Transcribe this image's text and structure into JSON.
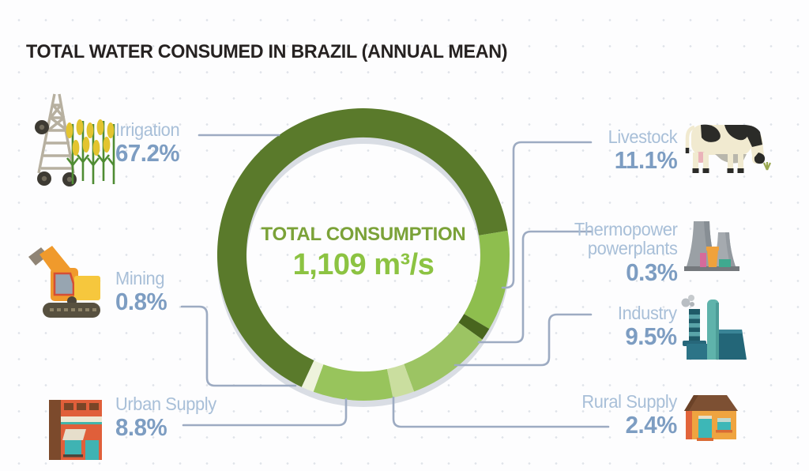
{
  "title": "TOTAL WATER CONSUMED IN BRAZIL (ANNUAL MEAN)",
  "donut_center": {
    "label": "TOTAL CONSUMPTION",
    "value": "1,109 m³/s"
  },
  "items": [
    {
      "name": "Irrigation",
      "pct": "67.2%"
    },
    {
      "name": "Mining",
      "pct": "0.8%"
    },
    {
      "name": "Urban Supply",
      "pct": "8.8%"
    },
    {
      "name": "Livestock",
      "pct": "11.1%"
    },
    {
      "name": "Thermopower",
      "name2": "powerplants",
      "pct": "0.3%"
    },
    {
      "name": "Industry",
      "pct": "9.5%"
    },
    {
      "name": "Rural Supply",
      "pct": "2.4%"
    }
  ],
  "chart_data": {
    "type": "pie",
    "subtype": "donut",
    "title": "TOTAL WATER CONSUMED IN BRAZIL (ANNUAL MEAN)",
    "center_label": "TOTAL CONSUMPTION",
    "center_value": "1,109 m³/s",
    "unit": "%",
    "categories": [
      "Irrigation",
      "Livestock",
      "Thermopower powerplants",
      "Industry",
      "Rural Supply",
      "Urban Supply",
      "Mining"
    ],
    "values": [
      67.2,
      11.1,
      0.3,
      9.5,
      2.4,
      8.8,
      0.8
    ],
    "colors": [
      "#5a7a2b",
      "#8ebe4e",
      "#48651e",
      "#9cc463",
      "#cade9f",
      "#98c45c",
      "#eef3dc"
    ],
    "start_angle_deg": 205,
    "legend_position": "callouts-around-donut",
    "grid": false
  },
  "style": {
    "accent_green_dark": "#5a7a2b",
    "accent_green": "#8cc342",
    "label_color": "#a8bfd8",
    "value_color": "#7d9dc2",
    "line_color": "#9dabc2"
  }
}
